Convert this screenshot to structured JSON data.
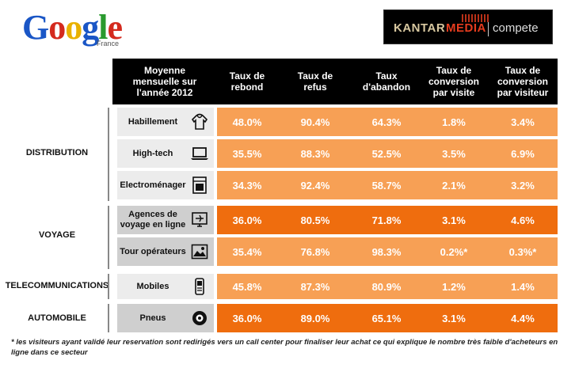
{
  "logos": {
    "google_letters": [
      "G",
      "o",
      "o",
      "g",
      "l",
      "e"
    ],
    "google_colors": [
      "#1a56c6",
      "#d42a1e",
      "#e9b100",
      "#1a56c6",
      "#2a9a2e",
      "#d42a1e"
    ],
    "google_sub": "France",
    "kantar_a": "KANTAR",
    "kantar_b": "MEDIA",
    "kantar_c": "compete"
  },
  "colors": {
    "header_bg": "#000000",
    "cell_light": "#f7a055",
    "cell_dark": "#ef6d0e",
    "label_light": "#ececec",
    "label_dark": "#cfcfcf"
  },
  "chart_data": {
    "type": "table",
    "title": "",
    "row_header": "Moyenne mensuelle sur l'année 2012",
    "columns": [
      "Taux de rebond",
      "Taux de refus",
      "Taux d'abandon",
      "Taux de conversion par visite",
      "Taux de conversion par visiteur"
    ],
    "groups": [
      "DISTRIBUTION",
      "VOYAGE",
      "TELECOMMUNICATIONS",
      "AUTOMOBILE"
    ],
    "rows": [
      {
        "group": "DISTRIBUTION",
        "label": "Habillement",
        "icon": "hoodie-icon",
        "values": [
          "48.0%",
          "90.4%",
          "64.3%",
          "1.8%",
          "3.4%"
        ]
      },
      {
        "group": "DISTRIBUTION",
        "label": "High-tech",
        "icon": "laptop-icon",
        "values": [
          "35.5%",
          "88.3%",
          "52.5%",
          "3.5%",
          "6.9%"
        ]
      },
      {
        "group": "DISTRIBUTION",
        "label": "Electroménager",
        "icon": "oven-icon",
        "values": [
          "34.3%",
          "92.4%",
          "58.7%",
          "2.1%",
          "3.2%"
        ]
      },
      {
        "group": "VOYAGE",
        "label": "Agences de voyage en ligne",
        "icon": "plane-screen-icon",
        "values": [
          "36.0%",
          "80.5%",
          "71.8%",
          "3.1%",
          "4.6%"
        ]
      },
      {
        "group": "VOYAGE",
        "label": "Tour opérateurs",
        "icon": "landscape-icon",
        "values": [
          "35.4%",
          "76.8%",
          "98.3%",
          "0.2%*",
          "0.3%*"
        ]
      },
      {
        "group": "TELECOMMUNICATIONS",
        "label": "Mobiles",
        "icon": "mobile-phone-icon",
        "values": [
          "45.8%",
          "87.3%",
          "80.9%",
          "1.2%",
          "1.4%"
        ]
      },
      {
        "group": "AUTOMOBILE",
        "label": "Pneus",
        "icon": "tire-icon",
        "values": [
          "36.0%",
          "89.0%",
          "65.1%",
          "3.1%",
          "4.4%"
        ]
      }
    ],
    "footnote": "* les  visiteurs ayant validé leur reservation sont redirigés vers un call center pour finaliser leur achat ce qui explique le nombre très faible d'acheteurs en ligne dans ce secteur"
  }
}
